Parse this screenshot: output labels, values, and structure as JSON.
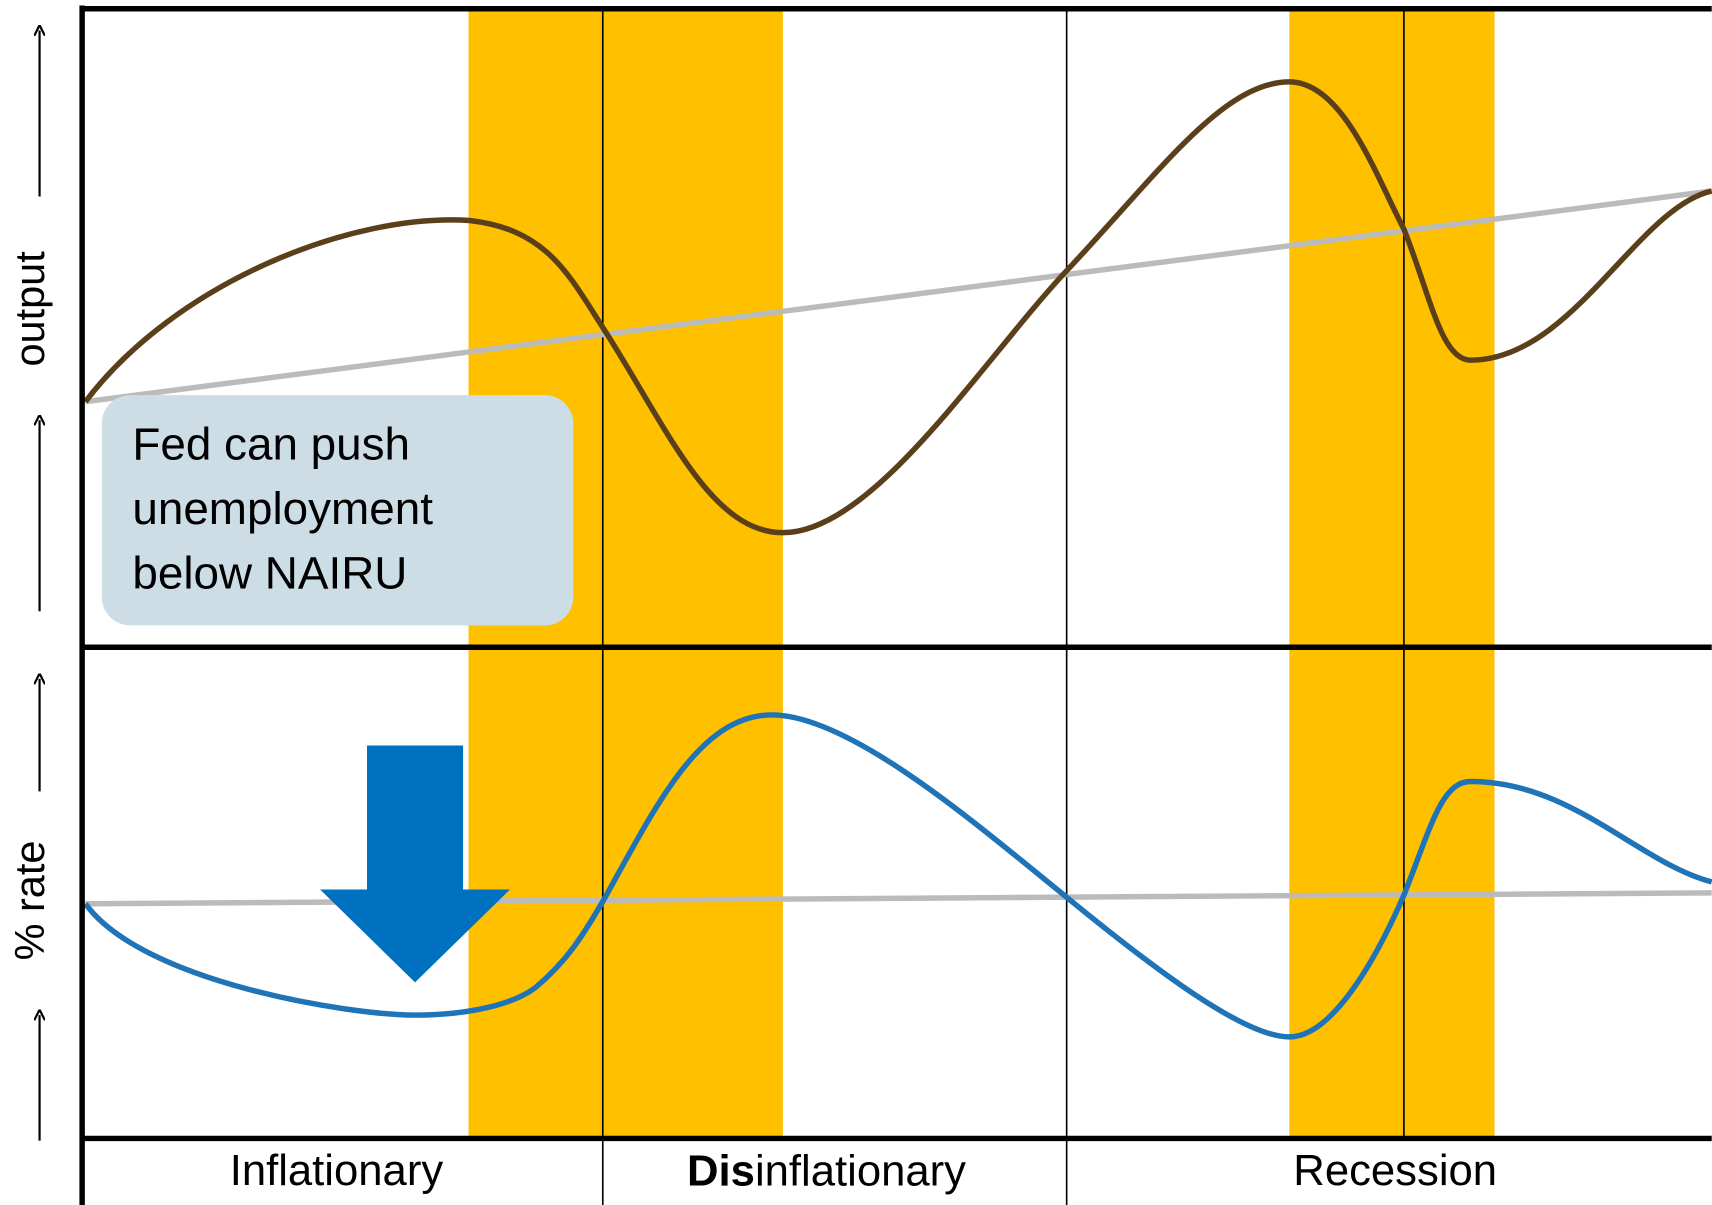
{
  "y_labels": {
    "top": "output",
    "bottom": "% rate"
  },
  "annotation": {
    "lines": [
      "Fed can push",
      "unemployment",
      "below NAIRU"
    ]
  },
  "phases": [
    {
      "label": "Inflationary"
    },
    {
      "bold_prefix": "Dis",
      "label": "inflationary"
    },
    {
      "label": "Recession"
    }
  ]
}
